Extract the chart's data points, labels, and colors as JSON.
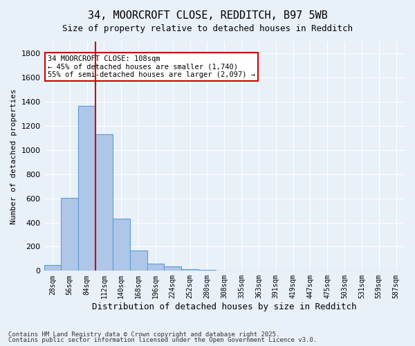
{
  "title1": "34, MOORCROFT CLOSE, REDDITCH, B97 5WB",
  "title2": "Size of property relative to detached houses in Redditch",
  "xlabel": "Distribution of detached houses by size in Redditch",
  "ylabel": "Number of detached properties",
  "bar_values": [
    50,
    605,
    1365,
    1130,
    430,
    170,
    60,
    35,
    15,
    10,
    0,
    0,
    0,
    0,
    0,
    0,
    0,
    0,
    0,
    0,
    0
  ],
  "categories": [
    "28sqm",
    "56sqm",
    "84sqm",
    "112sqm",
    "140sqm",
    "168sqm",
    "196sqm",
    "224sqm",
    "252sqm",
    "280sqm",
    "308sqm",
    "335sqm",
    "363sqm",
    "391sqm",
    "419sqm",
    "447sqm",
    "475sqm",
    "503sqm",
    "531sqm",
    "559sqm",
    "587sqm"
  ],
  "bar_color": "#aec6e8",
  "bar_edge_color": "#5a9fd4",
  "background_color": "#e8f0f8",
  "grid_color": "#ffffff",
  "annotation_text": "34 MOORCROFT CLOSE: 108sqm\n← 45% of detached houses are smaller (1,740)\n55% of semi-detached houses are larger (2,097) →",
  "annotation_box_color": "#ffffff",
  "annotation_border_color": "#cc0000",
  "vline_color": "#cc0000",
  "vline_x": 2.5,
  "ylim": [
    0,
    1900
  ],
  "yticks": [
    0,
    200,
    400,
    600,
    800,
    1000,
    1200,
    1400,
    1600,
    1800
  ],
  "footer1": "Contains HM Land Registry data © Crown copyright and database right 2025.",
  "footer2": "Contains public sector information licensed under the Open Government Licence v3.0."
}
